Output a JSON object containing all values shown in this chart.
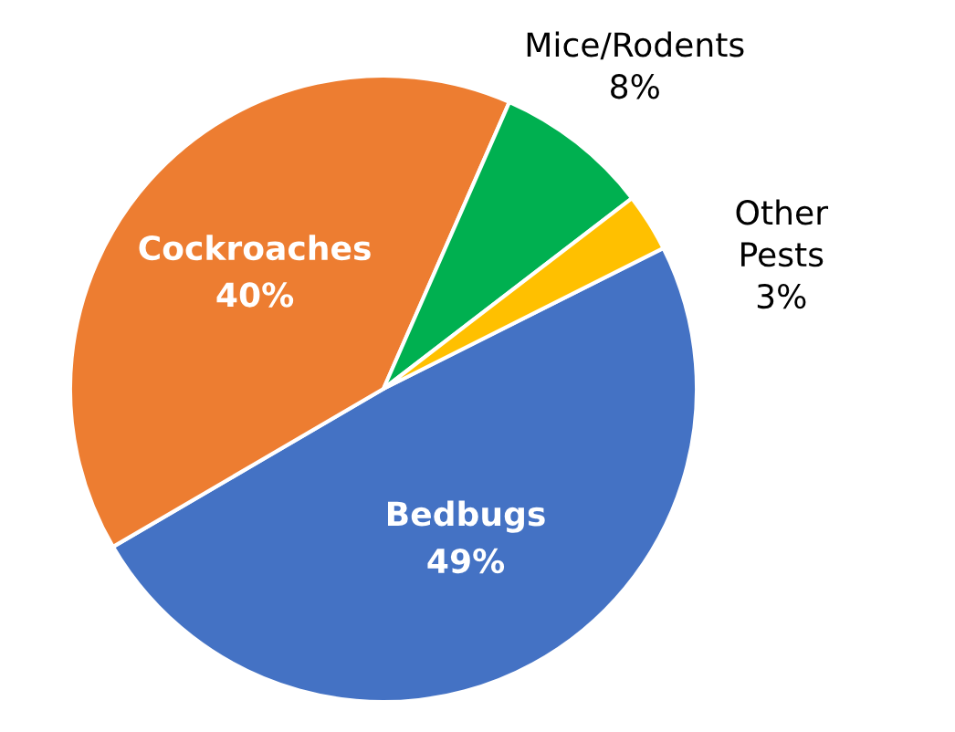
{
  "chart_data": {
    "type": "pie",
    "categories": [
      "Bedbugs",
      "Cockroaches",
      "Mice/Rodents",
      "Other Pests"
    ],
    "values": [
      49,
      40,
      8,
      3
    ],
    "value_labels": [
      "49%",
      "40%",
      "8%",
      "3%"
    ],
    "colors": [
      "#4472c4",
      "#ed7d31",
      "#00b050",
      "#ffc000"
    ]
  }
}
